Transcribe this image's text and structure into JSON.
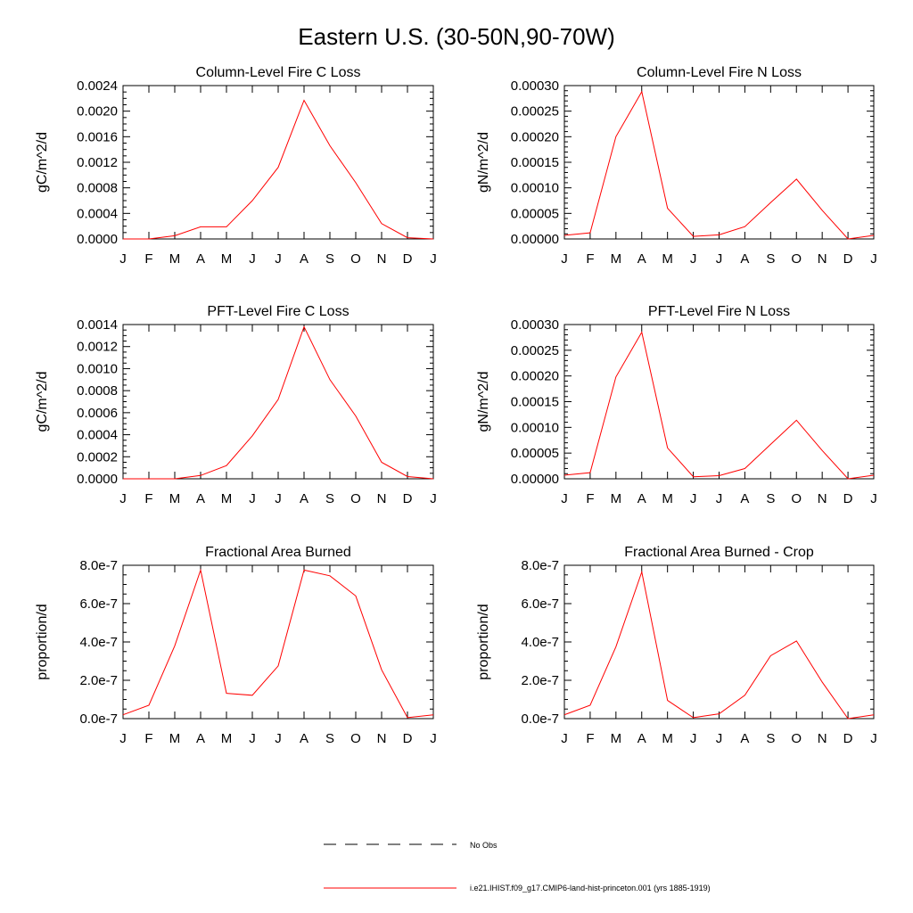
{
  "figure": {
    "title": "Eastern U.S. (30-50N,90-70W)"
  },
  "legend": {
    "obs_label": "No Obs",
    "model_label": "i.e21.IHIST.f09_g17.CMIP6-land-hist-princeton.001 (yrs 1885-1919)",
    "model_color": "#ff0000",
    "obs_color": "#000000"
  },
  "chart_data": [
    {
      "type": "line",
      "title": "Column-Level Fire C Loss",
      "ylabel": "gC/m^2/d",
      "categories": [
        "J",
        "F",
        "M",
        "A",
        "M",
        "J",
        "J",
        "A",
        "S",
        "O",
        "N",
        "D",
        "J"
      ],
      "series": [
        {
          "values": [
            0.0,
            0.0,
            5e-05,
            0.00019,
            0.00019,
            0.0006,
            0.00112,
            0.00217,
            0.00146,
            0.00088,
            0.00024,
            2e-05,
            0.0
          ]
        }
      ],
      "ylim": [
        0,
        0.0024
      ],
      "yticks": [
        0,
        0.0004,
        0.0008,
        0.0012,
        0.0016,
        0.002,
        0.0024
      ],
      "ytick_labels": [
        "0.0000",
        "0.0004",
        "0.0008",
        "0.0012",
        "0.0016",
        "0.0020",
        "0.0024"
      ],
      "minor_per_major": 4,
      "color": "#ff0000"
    },
    {
      "type": "line",
      "title": "Column-Level Fire N Loss",
      "ylabel": "gN/m^2/d",
      "categories": [
        "J",
        "F",
        "M",
        "A",
        "M",
        "J",
        "J",
        "A",
        "S",
        "O",
        "N",
        "D",
        "J"
      ],
      "series": [
        {
          "values": [
            7e-06,
            1.2e-05,
            0.0002,
            0.000288,
            6e-05,
            5e-06,
            8e-06,
            2.4e-05,
            7.1e-05,
            0.000117,
            5.6e-05,
            0.0,
            7e-06
          ]
        }
      ],
      "ylim": [
        0,
        0.0003
      ],
      "yticks": [
        0,
        5e-05,
        0.0001,
        0.00015,
        0.0002,
        0.00025,
        0.0003
      ],
      "ytick_labels": [
        "0.00000",
        "0.00005",
        "0.00010",
        "0.00015",
        "0.00020",
        "0.00025",
        "0.00030"
      ],
      "minor_per_major": 5,
      "color": "#ff0000"
    },
    {
      "type": "line",
      "title": "PFT-Level Fire C Loss",
      "ylabel": "gC/m^2/d",
      "categories": [
        "J",
        "F",
        "M",
        "A",
        "M",
        "J",
        "J",
        "A",
        "S",
        "O",
        "N",
        "D",
        "J"
      ],
      "series": [
        {
          "values": [
            0.0,
            0.0,
            0.0,
            3e-05,
            0.00012,
            0.00039,
            0.00072,
            0.00138,
            0.0009,
            0.00057,
            0.00015,
            2e-05,
            0.0
          ]
        }
      ],
      "ylim": [
        0,
        0.0014
      ],
      "yticks": [
        0,
        0.0002,
        0.0004,
        0.0006,
        0.0008,
        0.001,
        0.0012,
        0.0014
      ],
      "ytick_labels": [
        "0.0000",
        "0.0002",
        "0.0004",
        "0.0006",
        "0.0008",
        "0.0010",
        "0.0012",
        "0.0014"
      ],
      "minor_per_major": 4,
      "color": "#ff0000"
    },
    {
      "type": "line",
      "title": "PFT-Level Fire N Loss",
      "ylabel": "gN/m^2/d",
      "categories": [
        "J",
        "F",
        "M",
        "A",
        "M",
        "J",
        "J",
        "A",
        "S",
        "O",
        "N",
        "D",
        "J"
      ],
      "series": [
        {
          "values": [
            7e-06,
            1.2e-05,
            0.000198,
            0.000285,
            6e-05,
            4e-06,
            6e-06,
            2e-05,
            6.7e-05,
            0.000114,
            5.5e-05,
            0.0,
            7e-06
          ]
        }
      ],
      "ylim": [
        0,
        0.0003
      ],
      "yticks": [
        0,
        5e-05,
        0.0001,
        0.00015,
        0.0002,
        0.00025,
        0.0003
      ],
      "ytick_labels": [
        "0.00000",
        "0.00005",
        "0.00010",
        "0.00015",
        "0.00020",
        "0.00025",
        "0.00030"
      ],
      "minor_per_major": 5,
      "color": "#ff0000"
    },
    {
      "type": "line",
      "title": "Fractional Area Burned",
      "ylabel": "proportion/d",
      "categories": [
        "J",
        "F",
        "M",
        "A",
        "M",
        "J",
        "J",
        "A",
        "S",
        "O",
        "N",
        "D",
        "J"
      ],
      "series": [
        {
          "values": [
            2e-08,
            7e-08,
            3.8e-07,
            7.75e-07,
            1.32e-07,
            1.22e-07,
            2.75e-07,
            7.75e-07,
            7.45e-07,
            6.4e-07,
            2.55e-07,
            5e-09,
            2e-08
          ]
        }
      ],
      "ylim": [
        0,
        8e-07
      ],
      "yticks": [
        0,
        2e-07,
        4e-07,
        6e-07,
        8e-07
      ],
      "ytick_labels": [
        "0.0e-7",
        "2.0e-7",
        "4.0e-7",
        "6.0e-7",
        "8.0e-7"
      ],
      "minor_per_major": 4,
      "color": "#ff0000"
    },
    {
      "type": "line",
      "title": "Fractional Area Burned - Crop",
      "ylabel": "proportion/d",
      "categories": [
        "J",
        "F",
        "M",
        "A",
        "M",
        "J",
        "J",
        "A",
        "S",
        "O",
        "N",
        "D",
        "J"
      ],
      "series": [
        {
          "values": [
            2e-08,
            7e-08,
            3.75e-07,
            7.65e-07,
            9.5e-08,
            5e-09,
            2.5e-08,
            1.22e-07,
            3.28e-07,
            4.05e-07,
            1.9e-07,
            0.0,
            2e-08
          ]
        }
      ],
      "ylim": [
        0,
        8e-07
      ],
      "yticks": [
        0,
        2e-07,
        4e-07,
        6e-07,
        8e-07
      ],
      "ytick_labels": [
        "0.0e-7",
        "2.0e-7",
        "4.0e-7",
        "6.0e-7",
        "8.0e-7"
      ],
      "minor_per_major": 4,
      "color": "#ff0000"
    }
  ]
}
